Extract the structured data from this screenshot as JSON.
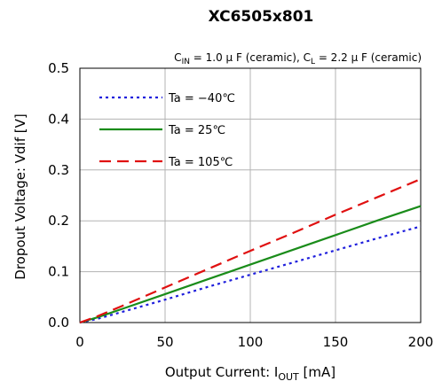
{
  "chart_data": {
    "type": "line",
    "title": "XC6505x801",
    "conditions": {
      "cin_prefix": "C",
      "cin_sub": "IN",
      "cin_value": " = 1.0 μ F (ceramic), ",
      "cl_prefix": "C",
      "cl_sub": "L",
      "cl_value": " = 2.2 μ F (ceramic)"
    },
    "xlabel": {
      "prefix": "Output Current: I",
      "sub": "OUT",
      "suffix": " [mA]"
    },
    "ylabel": "Dropout Voltage: Vdif [V]",
    "xlim": [
      0,
      200
    ],
    "ylim": [
      0,
      0.5
    ],
    "x_ticks": [
      "0",
      "50",
      "100",
      "150",
      "200"
    ],
    "y_ticks": [
      "0.0",
      "0.1",
      "0.2",
      "0.3",
      "0.4",
      "0.5"
    ],
    "grid": true,
    "legend_position": "top-left",
    "series": [
      {
        "name": "Ta = −40℃",
        "color": "#1f1fdc",
        "style": "dotted",
        "points": [
          [
            0,
            0
          ],
          [
            10,
            0.007
          ],
          [
            25,
            0.021
          ],
          [
            50,
            0.045
          ],
          [
            75,
            0.07
          ],
          [
            100,
            0.094
          ],
          [
            125,
            0.118
          ],
          [
            150,
            0.142
          ],
          [
            175,
            0.166
          ],
          [
            200,
            0.189
          ]
        ]
      },
      {
        "name": "Ta = 25℃",
        "color": "#1a8c1a",
        "style": "solid",
        "points": [
          [
            0,
            0
          ],
          [
            10,
            0.01
          ],
          [
            25,
            0.027
          ],
          [
            50,
            0.056
          ],
          [
            75,
            0.085
          ],
          [
            100,
            0.114
          ],
          [
            125,
            0.143
          ],
          [
            150,
            0.172
          ],
          [
            175,
            0.201
          ],
          [
            200,
            0.229
          ]
        ]
      },
      {
        "name": "Ta = 105℃",
        "color": "#e01010",
        "style": "dashed",
        "points": [
          [
            0,
            0
          ],
          [
            10,
            0.012
          ],
          [
            25,
            0.033
          ],
          [
            50,
            0.069
          ],
          [
            75,
            0.105
          ],
          [
            100,
            0.141
          ],
          [
            125,
            0.176
          ],
          [
            150,
            0.212
          ],
          [
            175,
            0.247
          ],
          [
            200,
            0.282
          ]
        ]
      }
    ]
  }
}
